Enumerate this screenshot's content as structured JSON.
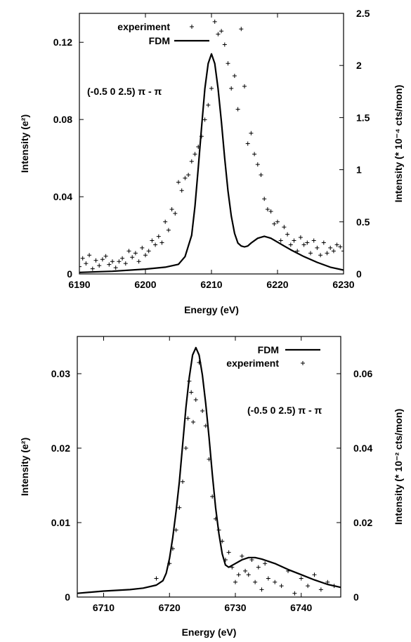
{
  "chart_data": [
    {
      "type": "line",
      "title": "",
      "annotation": "(-0.5 0 2.5) π - π",
      "xlabel": "Energy (eV)",
      "ylabel_left": "Intensity (e²)",
      "ylabel_right": "Intensity (* 10⁻⁴ cts/mon)",
      "xlim": [
        6190,
        6230
      ],
      "ylim_left": [
        0,
        0.135
      ],
      "ylim_right": [
        0,
        2.5
      ],
      "x_ticks": [
        "6190",
        "6200",
        "6210",
        "6220",
        "6230"
      ],
      "y_ticks_left": [
        "0",
        "0.04",
        "0.08",
        "0.12"
      ],
      "y_ticks_right": [
        "0",
        "0.5",
        "1",
        "1.5",
        "2",
        "2.5"
      ],
      "legend_position": "top-left",
      "series": [
        {
          "name": "experiment",
          "style": "points",
          "axis": "right",
          "x": [
            6190.0,
            6190.5,
            6191.0,
            6191.5,
            6192.0,
            6192.5,
            6193.0,
            6193.5,
            6194.0,
            6194.5,
            6195.0,
            6195.5,
            6196.0,
            6196.5,
            6197.0,
            6197.5,
            6198.0,
            6198.5,
            6199.0,
            6199.5,
            6200.0,
            6200.5,
            6201.0,
            6201.5,
            6202.0,
            6202.5,
            6203.0,
            6203.5,
            6204.0,
            6204.5,
            6205.0,
            6205.5,
            6206.0,
            6206.5,
            6207.0,
            6207.5,
            6208.0,
            6208.5,
            6209.0,
            6209.5,
            6210.0,
            6210.5,
            6211.0,
            6211.5,
            6212.0,
            6212.5,
            6213.0,
            6213.5,
            6214.0,
            6214.5,
            6215.0,
            6215.5,
            6216.0,
            6216.5,
            6217.0,
            6217.5,
            6218.0,
            6218.5,
            6219.0,
            6219.5,
            6220.0,
            6220.5,
            6221.0,
            6221.5,
            6222.0,
            6222.5,
            6223.0,
            6223.5,
            6224.0,
            6224.5,
            6225.0,
            6225.5,
            6226.0,
            6226.5,
            6227.0,
            6227.5,
            6228.0,
            6228.5,
            6229.0,
            6229.5,
            6230.0
          ],
          "y": [
            0.07,
            0.15,
            0.1,
            0.18,
            0.05,
            0.13,
            0.08,
            0.14,
            0.17,
            0.09,
            0.12,
            0.06,
            0.12,
            0.15,
            0.1,
            0.22,
            0.16,
            0.2,
            0.12,
            0.25,
            0.18,
            0.22,
            0.32,
            0.28,
            0.36,
            0.3,
            0.5,
            0.42,
            0.62,
            0.58,
            0.88,
            0.8,
            0.92,
            0.95,
            1.08,
            1.15,
            1.22,
            1.32,
            1.48,
            1.62,
            1.78,
            2.42,
            2.3,
            2.33,
            2.2,
            2.02,
            1.78,
            1.9,
            1.58,
            2.35,
            1.8,
            1.25,
            1.35,
            1.15,
            1.05,
            0.95,
            0.72,
            0.62,
            0.6,
            0.48,
            0.5,
            0.32,
            0.45,
            0.38,
            0.28,
            0.32,
            0.22,
            0.35,
            0.28,
            0.3,
            0.2,
            0.32,
            0.25,
            0.18,
            0.3,
            0.2,
            0.25,
            0.22,
            0.28,
            0.26,
            0.22
          ]
        },
        {
          "name": "FDM",
          "style": "line",
          "axis": "left",
          "x": [
            6190,
            6195,
            6200,
            6203,
            6205,
            6206,
            6207,
            6207.5,
            6208,
            6208.5,
            6209,
            6209.5,
            6210,
            6210.5,
            6211,
            6211.5,
            6212,
            6212.5,
            6213,
            6213.5,
            6214,
            6214.5,
            6215,
            6215.5,
            6216,
            6217,
            6218,
            6219,
            6220,
            6221,
            6222,
            6224,
            6226,
            6228,
            6230
          ],
          "y": [
            0.0008,
            0.0014,
            0.0025,
            0.0035,
            0.005,
            0.009,
            0.02,
            0.035,
            0.055,
            0.076,
            0.096,
            0.109,
            0.114,
            0.109,
            0.096,
            0.079,
            0.06,
            0.043,
            0.03,
            0.021,
            0.016,
            0.0145,
            0.014,
            0.0145,
            0.016,
            0.0185,
            0.0195,
            0.0185,
            0.0165,
            0.0145,
            0.0125,
            0.009,
            0.006,
            0.0035,
            0.002
          ]
        }
      ]
    },
    {
      "type": "line",
      "title": "",
      "annotation": "(-0.5 0 2.5) π - π",
      "xlabel": "Energy (eV)",
      "ylabel_left": "Intensity (e²)",
      "ylabel_right": "Intensity (* 10⁻² cts/mon)",
      "xlim": [
        6706,
        6746
      ],
      "ylim_left": [
        0,
        0.035
      ],
      "ylim_right": [
        0,
        0.07
      ],
      "x_ticks": [
        "6710",
        "6720",
        "6730",
        "6740"
      ],
      "y_ticks_left": [
        "0",
        "0.01",
        "0.02",
        "0.03"
      ],
      "y_ticks_right": [
        "0",
        "0.02",
        "0.04",
        "0.06"
      ],
      "legend_position": "top-right",
      "series": [
        {
          "name": "FDM",
          "style": "line",
          "axis": "left",
          "x": [
            6706,
            6710,
            6714,
            6716,
            6718,
            6719,
            6719.5,
            6720,
            6720.5,
            6721,
            6721.5,
            6722,
            6722.5,
            6723,
            6723.5,
            6724,
            6724.5,
            6725,
            6725.5,
            6726,
            6726.5,
            6727,
            6727.5,
            6728,
            6728.5,
            6729,
            6730,
            6731,
            6732,
            6733,
            6734,
            6736,
            6738,
            6740,
            6742,
            6744,
            6746
          ],
          "y": [
            0.0005,
            0.0008,
            0.001,
            0.0012,
            0.0016,
            0.0022,
            0.0032,
            0.0052,
            0.008,
            0.0115,
            0.0155,
            0.0205,
            0.0255,
            0.0295,
            0.0325,
            0.0335,
            0.0325,
            0.0298,
            0.026,
            0.0215,
            0.0165,
            0.012,
            0.0085,
            0.0058,
            0.0043,
            0.004,
            0.0045,
            0.005,
            0.0053,
            0.0053,
            0.0051,
            0.0045,
            0.0037,
            0.003,
            0.0023,
            0.0017,
            0.0013
          ]
        },
        {
          "name": "experiment",
          "style": "points",
          "axis": "right",
          "x": [
            6718,
            6720,
            6720.5,
            6721,
            6721.5,
            6722,
            6722.5,
            6722.8,
            6723,
            6723.3,
            6723.6,
            6724,
            6724.5,
            6725,
            6725.5,
            6726,
            6726.5,
            6727,
            6727.5,
            6728,
            6728.5,
            6729,
            6729.5,
            6730,
            6730.5,
            6731,
            6731.5,
            6732,
            6732.5,
            6733,
            6733.5,
            6734,
            6734.5,
            6735,
            6736,
            6737,
            6738,
            6739,
            6740,
            6741,
            6742,
            6743,
            6744,
            6745
          ],
          "y": [
            0.005,
            0.009,
            0.013,
            0.018,
            0.024,
            0.031,
            0.04,
            0.048,
            0.058,
            0.055,
            0.047,
            0.053,
            0.063,
            0.05,
            0.046,
            0.037,
            0.027,
            0.021,
            0.018,
            0.015,
            0.01,
            0.012,
            0.008,
            0.004,
            0.006,
            0.011,
            0.007,
            0.006,
            0.01,
            0.004,
            0.008,
            0.002,
            0.009,
            0.005,
            0.004,
            0.003,
            0.007,
            0.001,
            0.005,
            0.003,
            0.006,
            0.002,
            0.004,
            0.003
          ]
        }
      ]
    }
  ]
}
